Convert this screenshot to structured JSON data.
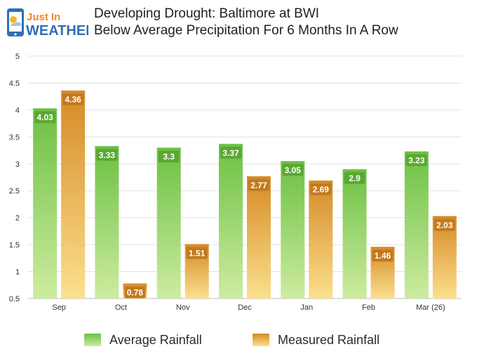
{
  "logo": {
    "line1": "Just In",
    "line2": "WEATHER"
  },
  "header": {
    "title_line1": "Developing Drought: Baltimore at BWI",
    "title_line2": "Below Average Precipitation For 6 Months In A Row"
  },
  "colors": {
    "average": "#7cc94c",
    "average_light": "#c8ea98",
    "measured": "#d9952f",
    "measured_light": "#f7d98a",
    "logo_blue": "#2f6fb5",
    "logo_orange": "#f08a24"
  },
  "chart_data": {
    "type": "bar",
    "title": "Developing Drought: Baltimore at BWI",
    "subtitle": "Below Average Precipitation For 6 Months In A Row",
    "categories": [
      "Sep",
      "Oct",
      "Nov",
      "Dec",
      "Jan",
      "Feb",
      "Mar (26)"
    ],
    "series": [
      {
        "name": "Average Rainfall",
        "values": [
          4.03,
          3.33,
          3.3,
          3.37,
          3.05,
          2.9,
          3.23
        ],
        "labels": [
          "4.03",
          "3.33",
          "3.3",
          "3.37",
          "3.05",
          "2.9",
          "3.23"
        ]
      },
      {
        "name": "Measured Rainfall",
        "values": [
          4.36,
          0.78,
          1.51,
          2.77,
          2.69,
          1.46,
          2.03
        ],
        "labels": [
          "4.36",
          "0.78",
          "1.51",
          "2.77",
          "2.69",
          "1.46",
          "2.03"
        ]
      }
    ],
    "y_ticks": [
      "0.5",
      "1",
      "1.5",
      "2",
      "2.5",
      "3",
      "3.5",
      "4",
      "4.5",
      "5"
    ],
    "ylim": [
      0.5,
      5
    ],
    "grid": true,
    "legend_position": "bottom"
  }
}
